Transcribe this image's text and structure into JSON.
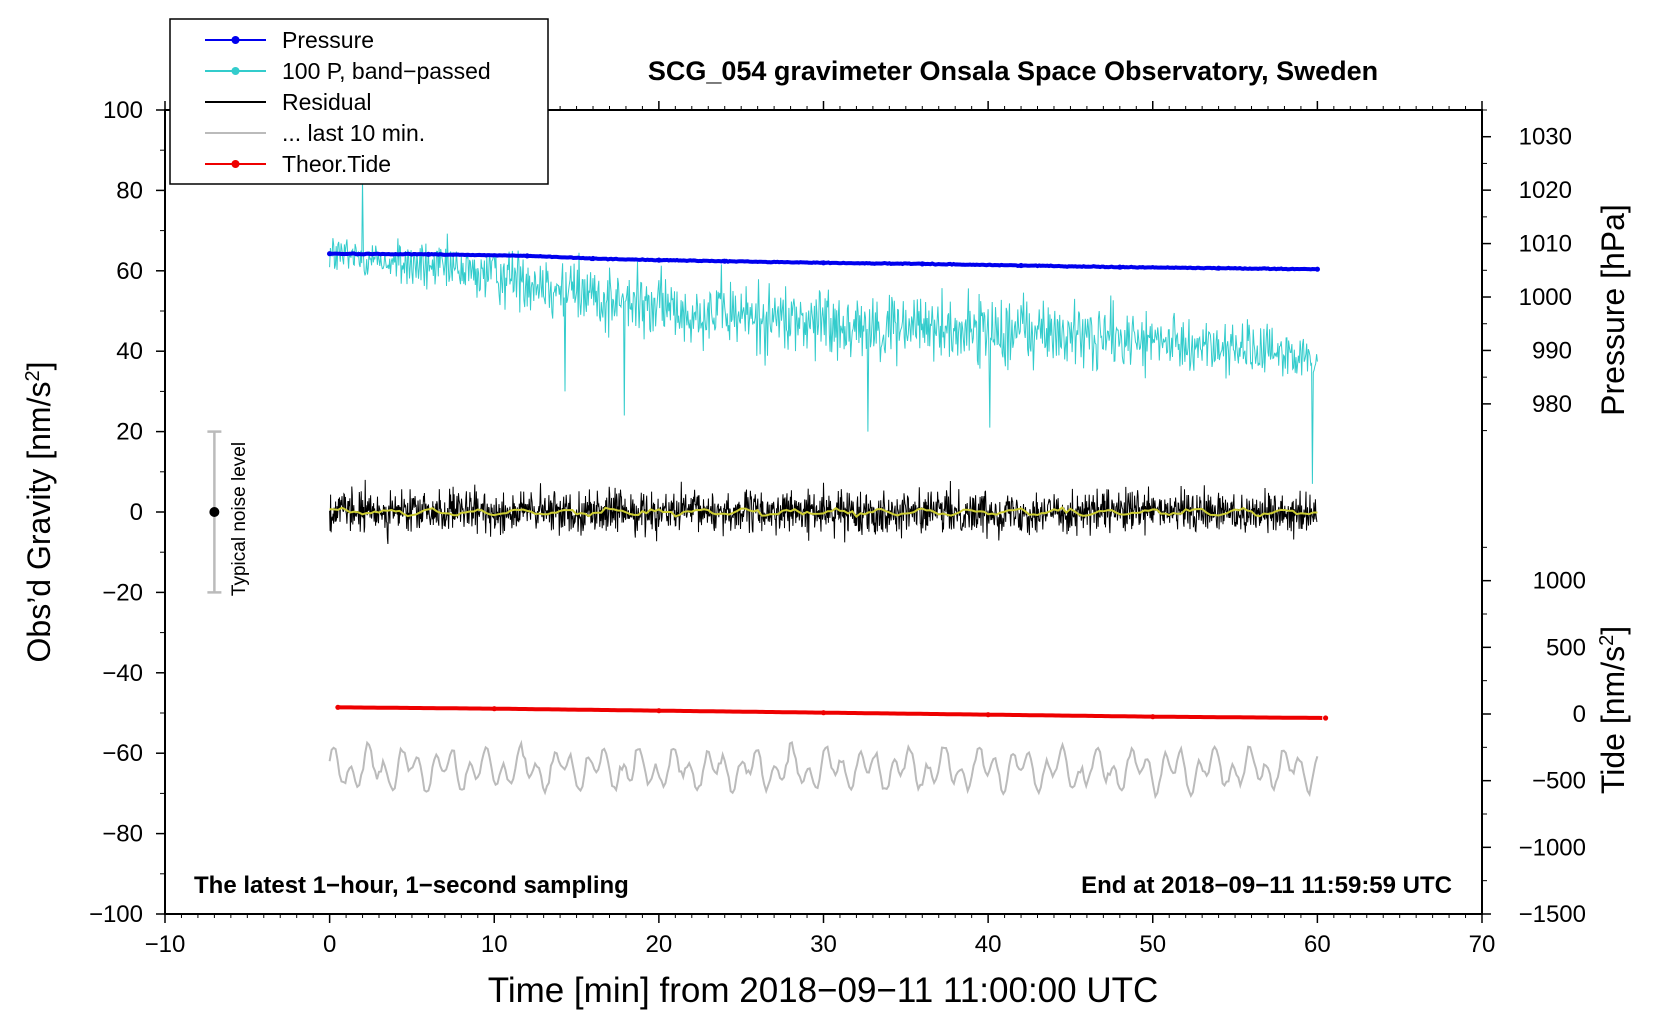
{
  "chart_data": {
    "type": "line",
    "title": "SCG_054 gravimeter Onsala Space Observatory, Sweden",
    "xlabel": "Time [min] from 2018−09−11 11:00:00 UTC",
    "ylabel_left_text": "Obs’d Gravity [nm/s",
    "ylabel_left_sup": "2",
    "ylabel_left_close": "]",
    "ylabel_right_top": "Pressure [hPa]",
    "ylabel_right_bottom_text": "Tide [nm/s",
    "ylabel_right_bottom_sup": "2",
    "ylabel_right_bottom_close": "]",
    "xlim": [
      -10,
      70
    ],
    "ylim_left": [
      -100,
      100
    ],
    "ylim_pressure": [
      968,
      1035
    ],
    "ylim_tide": [
      -1500,
      1500
    ],
    "x_ticks": [
      -10,
      0,
      10,
      20,
      30,
      40,
      50,
      60,
      70
    ],
    "x_tick_labels": [
      "−10",
      "0",
      "10",
      "20",
      "30",
      "40",
      "50",
      "60",
      "70"
    ],
    "y_left_ticks": [
      100,
      80,
      60,
      40,
      20,
      0,
      -20,
      -40,
      -60,
      -80,
      -100
    ],
    "y_left_tick_labels": [
      "100",
      "80",
      "60",
      "40",
      "20",
      "0",
      "−20",
      "−40",
      "−60",
      "−80",
      "−100"
    ],
    "pressure_ticks": [
      1030,
      1020,
      1010,
      1000,
      990,
      980
    ],
    "pressure_tick_labels": [
      "1030",
      "1020",
      "1010",
      "1000",
      "990",
      "980"
    ],
    "tide_ticks": [
      1000,
      500,
      0,
      -500,
      -1000,
      -1500
    ],
    "tide_tick_labels": [
      "1000",
      "500",
      "0",
      "−500",
      "−1000",
      "−1500"
    ],
    "legend": {
      "position": "top-left",
      "entries": [
        {
          "label": "Pressure",
          "color": "#0000ee",
          "marker": true
        },
        {
          "label": "100 P, band−passed",
          "color": "#33cccc",
          "marker": true
        },
        {
          "label": "Residual",
          "color": "#000000",
          "marker": false
        },
        {
          "label": "... last 10 min.",
          "color": "#bbbbbb",
          "marker": false
        },
        {
          "label": "Theor.Tide",
          "color": "#ee0000",
          "marker": true
        }
      ]
    },
    "annotations": {
      "bottom_left": "The latest 1−hour, 1−second sampling",
      "bottom_right": "End at 2018−09−11 11:59:59 UTC",
      "noise_label": "Typical noise level"
    },
    "noise_bar": {
      "x": -7,
      "center": 0,
      "low": -20,
      "high": 20
    },
    "series": [
      {
        "name": "Pressure",
        "axis": "pressure",
        "color": "#0000ee",
        "x": [
          0,
          6,
          12,
          16,
          20,
          24,
          30,
          36,
          42,
          48,
          54,
          60
        ],
        "values": [
          1008.1,
          1008.0,
          1007.7,
          1007.2,
          1006.9,
          1006.7,
          1006.4,
          1006.2,
          1005.9,
          1005.6,
          1005.4,
          1005.2
        ]
      },
      {
        "name": "100 P, band−passed",
        "axis": "left",
        "color": "#33cccc",
        "x": [
          0,
          6,
          12,
          18,
          24,
          30,
          36,
          42,
          48,
          54,
          60
        ],
        "baseline": [
          64,
          61,
          58,
          52,
          49,
          47,
          46,
          45,
          43,
          41,
          38
        ],
        "amplitude": [
          6,
          7,
          9,
          11,
          10,
          11,
          10,
          11,
          9,
          8,
          9
        ],
        "spikes": [
          [
            2.0,
            83
          ],
          [
            14.3,
            30
          ],
          [
            17.9,
            24
          ],
          [
            32.7,
            20
          ],
          [
            40.1,
            21
          ],
          [
            59.7,
            7
          ]
        ]
      },
      {
        "name": "Residual",
        "axis": "left",
        "color": "#000000",
        "x": [
          0,
          60
        ],
        "values": [
          0,
          0
        ],
        "noise_amplitude": 4.5
      },
      {
        "name": "Residual smoothed",
        "axis": "left",
        "color": "#cccc33",
        "x": [
          0,
          60
        ],
        "values": [
          0,
          0
        ]
      },
      {
        "name": "... last 10 min.",
        "axis": "left",
        "color": "#bbbbbb",
        "x": [
          0,
          60
        ],
        "center": -64,
        "amplitude": 6,
        "note": "waveform shifted down for display"
      },
      {
        "name": "Theor.Tide",
        "axis": "tide",
        "color": "#ee0000",
        "x": [
          0.5,
          10,
          20,
          30,
          40,
          50,
          60.5
        ],
        "values": [
          50,
          40,
          25,
          10,
          -5,
          -20,
          -30
        ]
      }
    ]
  }
}
